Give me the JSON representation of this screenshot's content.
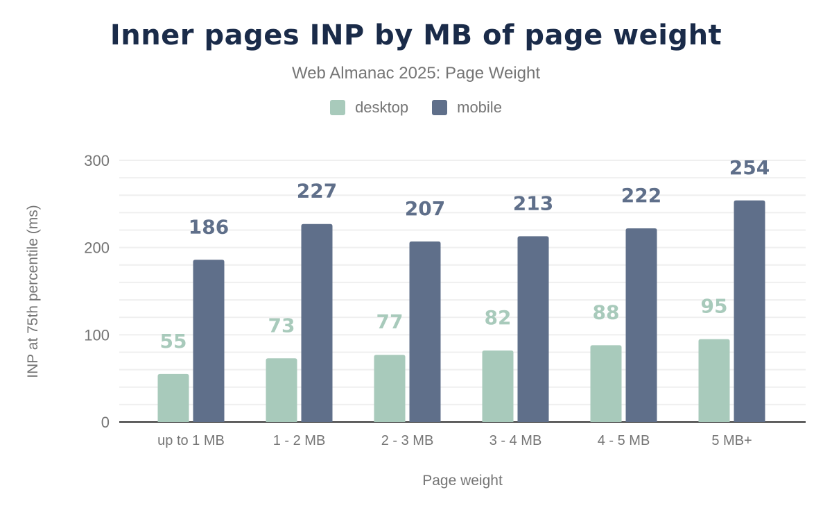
{
  "chart_data": {
    "type": "bar",
    "title": "Inner pages INP by MB of page weight",
    "subtitle": "Web Almanac 2025: Page Weight",
    "xlabel": "Page weight",
    "ylabel": "INP at 75th percentile (ms)",
    "categories": [
      "up to 1 MB",
      "1 - 2 MB",
      "2 - 3 MB",
      "3 - 4 MB",
      "4 - 5 MB",
      "5 MB+"
    ],
    "series": [
      {
        "name": "desktop",
        "color": "#a8cabb",
        "values": [
          55,
          73,
          77,
          82,
          88,
          95
        ]
      },
      {
        "name": "mobile",
        "color": "#5f6f8a",
        "values": [
          186,
          227,
          207,
          213,
          222,
          254
        ]
      }
    ],
    "ylim": [
      0,
      300
    ],
    "yticks": [
      "0",
      "100",
      "200",
      "300"
    ],
    "grid": true,
    "legend_position": "top",
    "data_labels": true
  }
}
